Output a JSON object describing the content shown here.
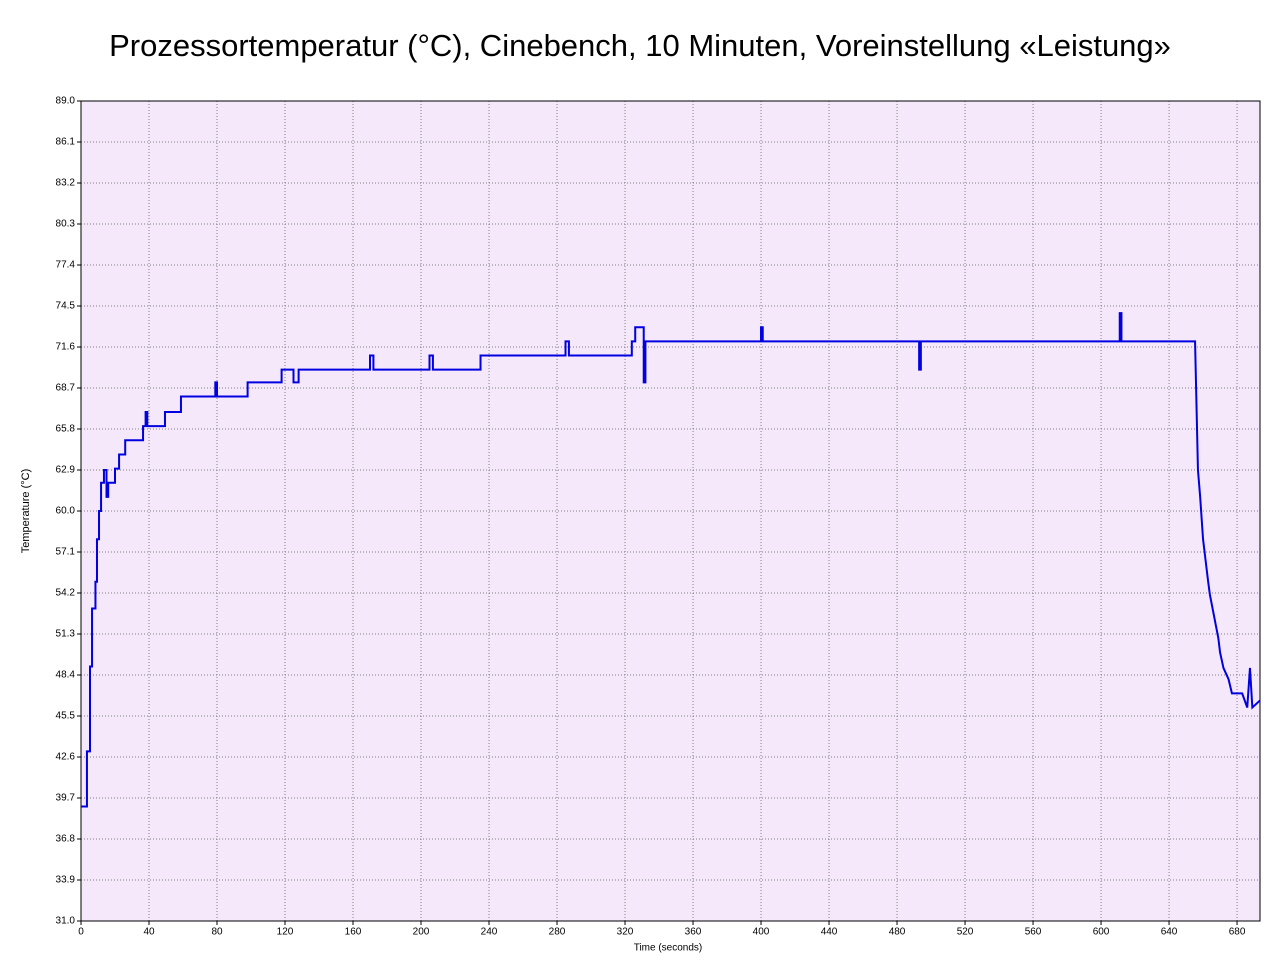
{
  "chart_data": {
    "type": "line",
    "title": "Prozessortemperatur (°C), Cinebench, 10 Minuten, Voreinstellung «Leistung»",
    "x_label": "Time (seconds)",
    "y_label": "Temperature (°C)",
    "x": [
      0,
      3.5,
      3.5,
      5.3,
      5.3,
      6.5,
      6.5,
      8.5,
      8.5,
      9.4,
      9.4,
      10.6,
      10.6,
      11.8,
      11.8,
      13.5,
      13.5,
      15,
      15,
      16,
      16,
      20,
      20,
      22.4,
      22.4,
      26,
      26,
      36.5,
      36.5,
      38,
      38,
      39,
      39,
      49.4,
      49.4,
      58.8,
      58.8,
      79,
      79,
      80,
      80,
      98,
      98,
      118,
      118,
      125,
      125,
      128,
      128,
      170,
      170,
      172,
      172,
      205,
      205,
      207,
      207,
      235,
      235,
      285,
      285,
      287,
      287,
      324,
      324,
      326,
      326,
      331,
      331,
      332,
      332,
      400,
      400,
      401,
      401,
      493,
      493,
      494,
      494,
      611,
      611,
      612,
      612,
      655.3,
      657,
      658.3,
      660,
      663,
      664,
      669,
      670,
      672,
      675,
      677,
      683,
      686,
      687.6,
      689,
      693.5
    ],
    "series": [
      {
        "name": "Temperature",
        "color": "#0000e0",
        "values": [
          39.1,
          39.1,
          43.0,
          43.0,
          49.0,
          49.0,
          53.1,
          53.1,
          55.0,
          55.0,
          58.0,
          58.0,
          60.0,
          60.0,
          62.0,
          62.0,
          62.9,
          62.9,
          61.0,
          61.0,
          62.0,
          62.0,
          63.0,
          63.0,
          64.0,
          64.0,
          65.0,
          65.0,
          66.0,
          66.0,
          67.0,
          67.0,
          66.0,
          66.0,
          67.0,
          67.0,
          68.1,
          68.1,
          69.1,
          69.1,
          68.1,
          68.1,
          69.1,
          69.1,
          70.0,
          70.0,
          69.1,
          69.1,
          70.0,
          70.0,
          71.0,
          71.0,
          70.0,
          70.0,
          71.0,
          71.0,
          70.0,
          70.0,
          71.0,
          71.0,
          72.0,
          72.0,
          71.0,
          71.0,
          72.0,
          72.0,
          73.0,
          73.0,
          69.1,
          69.1,
          72.0,
          72.0,
          73.0,
          73.0,
          72.0,
          72.0,
          70.0,
          70.0,
          72.0,
          72.0,
          74.0,
          74.0,
          72.0,
          72.0,
          62.9,
          61.0,
          58.0,
          55.0,
          54.1,
          51.0,
          50.0,
          48.9,
          48.1,
          47.1,
          47.1,
          46.1,
          48.9,
          46.1,
          46.6
        ]
      }
    ],
    "xlim": [
      0,
      693.5
    ],
    "ylim": [
      31,
      89
    ],
    "xticks": [
      0,
      40,
      80,
      120,
      160,
      200,
      240,
      280,
      320,
      360,
      400,
      440,
      480,
      520,
      560,
      600,
      640,
      680
    ],
    "yticks": [
      {
        "value": 31,
        "label": "31.0"
      },
      33.9,
      36.8,
      39.7,
      42.6,
      45.5,
      48.4,
      51.3,
      54.2,
      57.1,
      {
        "value": 60,
        "label": "60.0"
      },
      62.9,
      65.8,
      68.7,
      71.6,
      74.5,
      77.4,
      80.3,
      83.2,
      86.1,
      {
        "value": 89,
        "label": "89.0"
      }
    ],
    "grid": true,
    "plot_background": "#f5e8fb"
  }
}
